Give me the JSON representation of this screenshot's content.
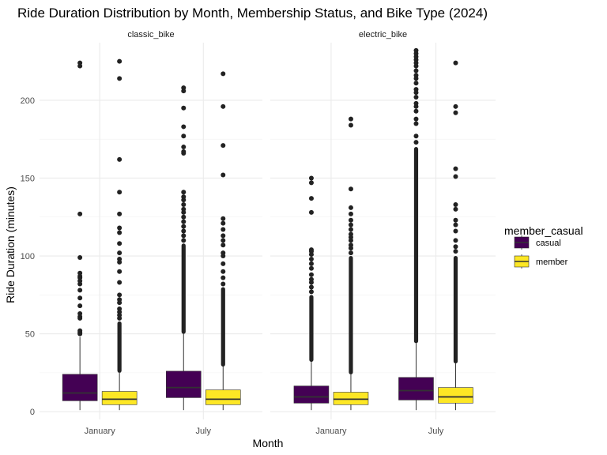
{
  "chart_data": {
    "type": "boxplot",
    "title": "Ride Duration Distribution by Month, Membership Status, and Bike Type (2024)",
    "xlabel": "Month",
    "ylabel": "Ride Duration (minutes)",
    "ylim": [
      -5,
      237
    ],
    "yticks": [
      0,
      50,
      100,
      150,
      200
    ],
    "grid": true,
    "legend_position": "right",
    "legend": {
      "title": "member_casual",
      "items": [
        {
          "label": "casual",
          "color": "#440154"
        },
        {
          "label": "member",
          "color": "#FDE725"
        }
      ]
    },
    "categories": [
      "January",
      "July"
    ],
    "facets": [
      {
        "name": "classic_bike",
        "groups": [
          {
            "month": "January",
            "member_casual": "casual",
            "min": 1,
            "q1": 7,
            "median": 12,
            "q3": 24,
            "max": 48,
            "outliers": [
              224,
              222,
              127,
              99,
              89,
              87,
              86,
              84,
              82,
              78,
              73,
              68,
              63,
              61,
              60,
              52,
              51,
              50
            ],
            "dense_outliers": []
          },
          {
            "month": "January",
            "member_casual": "member",
            "min": 1,
            "q1": 4.5,
            "median": 8,
            "q3": 13,
            "max": 25,
            "outliers": [
              225,
              214,
              162,
              141,
              127,
              118,
              115,
              108,
              102,
              98,
              96,
              90,
              83,
              75,
              72,
              70,
              66,
              64,
              62,
              60
            ],
            "dense_outliers": [
              25,
              58
            ]
          },
          {
            "month": "July",
            "member_casual": "casual",
            "min": 1,
            "q1": 9,
            "median": 15.5,
            "q3": 26,
            "max": 50,
            "outliers": [
              208,
              206,
              195,
              183,
              177,
              170,
              167,
              166,
              141,
              138,
              136,
              133,
              130,
              128,
              125,
              122,
              119,
              116,
              113,
              110
            ],
            "dense_outliers": [
              50,
              108
            ]
          },
          {
            "month": "July",
            "member_casual": "member",
            "min": 1,
            "q1": 4.5,
            "median": 8,
            "q3": 14,
            "max": 29,
            "outliers": [
              217,
              196,
              171,
              152,
              124,
              121,
              117,
              113,
              110,
              107,
              102,
              100,
              95,
              90,
              86,
              82
            ],
            "dense_outliers": [
              29,
              80
            ]
          }
        ]
      },
      {
        "name": "electric_bike",
        "groups": [
          {
            "month": "January",
            "member_casual": "casual",
            "min": 1,
            "q1": 5.5,
            "median": 9.5,
            "q3": 16.5,
            "max": 32,
            "outliers": [
              150,
              147,
              137,
              128,
              104,
              103,
              101,
              98,
              95,
              92,
              88,
              85,
              83,
              80,
              77
            ],
            "dense_outliers": [
              32,
              75
            ]
          },
          {
            "month": "January",
            "member_casual": "member",
            "min": 1,
            "q1": 4.5,
            "median": 8,
            "q3": 12.5,
            "max": 24,
            "outliers": [
              188,
              184,
              143,
              131,
              127,
              123,
              120,
              117,
              114,
              112,
              110,
              107,
              105,
              102
            ],
            "dense_outliers": [
              24,
              100
            ]
          },
          {
            "month": "July",
            "member_casual": "casual",
            "min": 1,
            "q1": 7.5,
            "median": 13.5,
            "q3": 22,
            "max": 44,
            "outliers": [
              232,
              230,
              228,
              226,
              224,
              222,
              219,
              216,
              214,
              211,
              207,
              205,
              202,
              198,
              196,
              193,
              188,
              185,
              177,
              173
            ],
            "dense_outliers": [
              44,
              170
            ]
          },
          {
            "month": "July",
            "member_casual": "member",
            "min": 1,
            "q1": 5.5,
            "median": 9.5,
            "q3": 15.5,
            "max": 31,
            "outliers": [
              224,
              196,
              192,
              156,
              151,
              133,
              130,
              123,
              120,
              116,
              110,
              106,
              103
            ],
            "dense_outliers": [
              31,
              100
            ]
          }
        ]
      }
    ]
  }
}
